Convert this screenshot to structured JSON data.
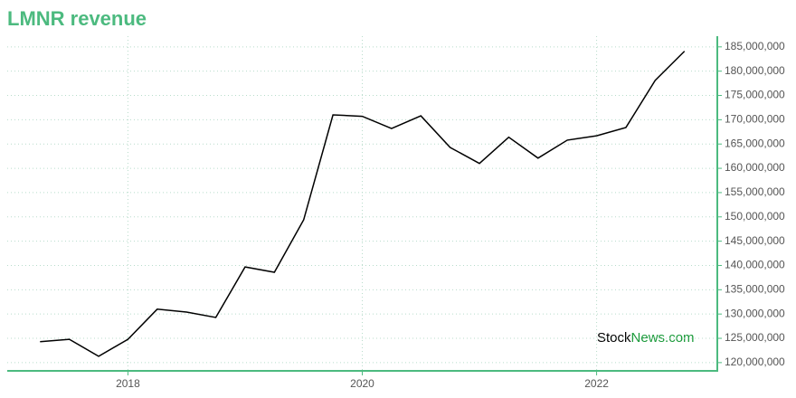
{
  "chart_data": {
    "type": "line",
    "title": "LMNR revenue",
    "x": [
      2017.25,
      2017.5,
      2017.75,
      2018,
      2018.25,
      2018.5,
      2018.75,
      2019,
      2019.25,
      2019.5,
      2019.75,
      2020,
      2020.25,
      2020.5,
      2020.75,
      2021,
      2021.25,
      2021.5,
      2021.75,
      2022,
      2022.25,
      2022.5,
      2022.75
    ],
    "series": [
      {
        "color": "#000000",
        "values": [
          124300000,
          124800000,
          121300000,
          124800000,
          131000000,
          130400000,
          129300000,
          139700000,
          138600000,
          149400000,
          171000000,
          170700000,
          168200000,
          170800000,
          164300000,
          161000000,
          166400000,
          162100000,
          165800000,
          166700000,
          168400000,
          178100000,
          184100000
        ]
      }
    ],
    "xlim": [
      2016.97,
      2023.03
    ],
    "xticks": [
      2018,
      2020,
      2022
    ],
    "ylim": [
      118300000,
      187200000
    ],
    "yticks": [
      {
        "value": 120000000,
        "label": "120,000,000"
      },
      {
        "value": 125000000,
        "label": "125,000,000"
      },
      {
        "value": 130000000,
        "label": "130,000,000"
      },
      {
        "value": 135000000,
        "label": "135,000,000"
      },
      {
        "value": 140000000,
        "label": "140,000,000"
      },
      {
        "value": 145000000,
        "label": "145,000,000"
      },
      {
        "value": 150000000,
        "label": "150,000,000"
      },
      {
        "value": 155000000,
        "label": "155,000,000"
      },
      {
        "value": 160000000,
        "label": "160,000,000"
      },
      {
        "value": 165000000,
        "label": "165,000,000"
      },
      {
        "value": 170000000,
        "label": "170,000,000"
      },
      {
        "value": 175000000,
        "label": "175,000,000"
      },
      {
        "value": 180000000,
        "label": "180,000,000"
      },
      {
        "value": 185000000,
        "label": "185,000,000"
      }
    ],
    "grid": true,
    "axis_color": "#4cba7f",
    "watermark": {
      "prefix": "Stock",
      "suffix": "News.com"
    }
  }
}
